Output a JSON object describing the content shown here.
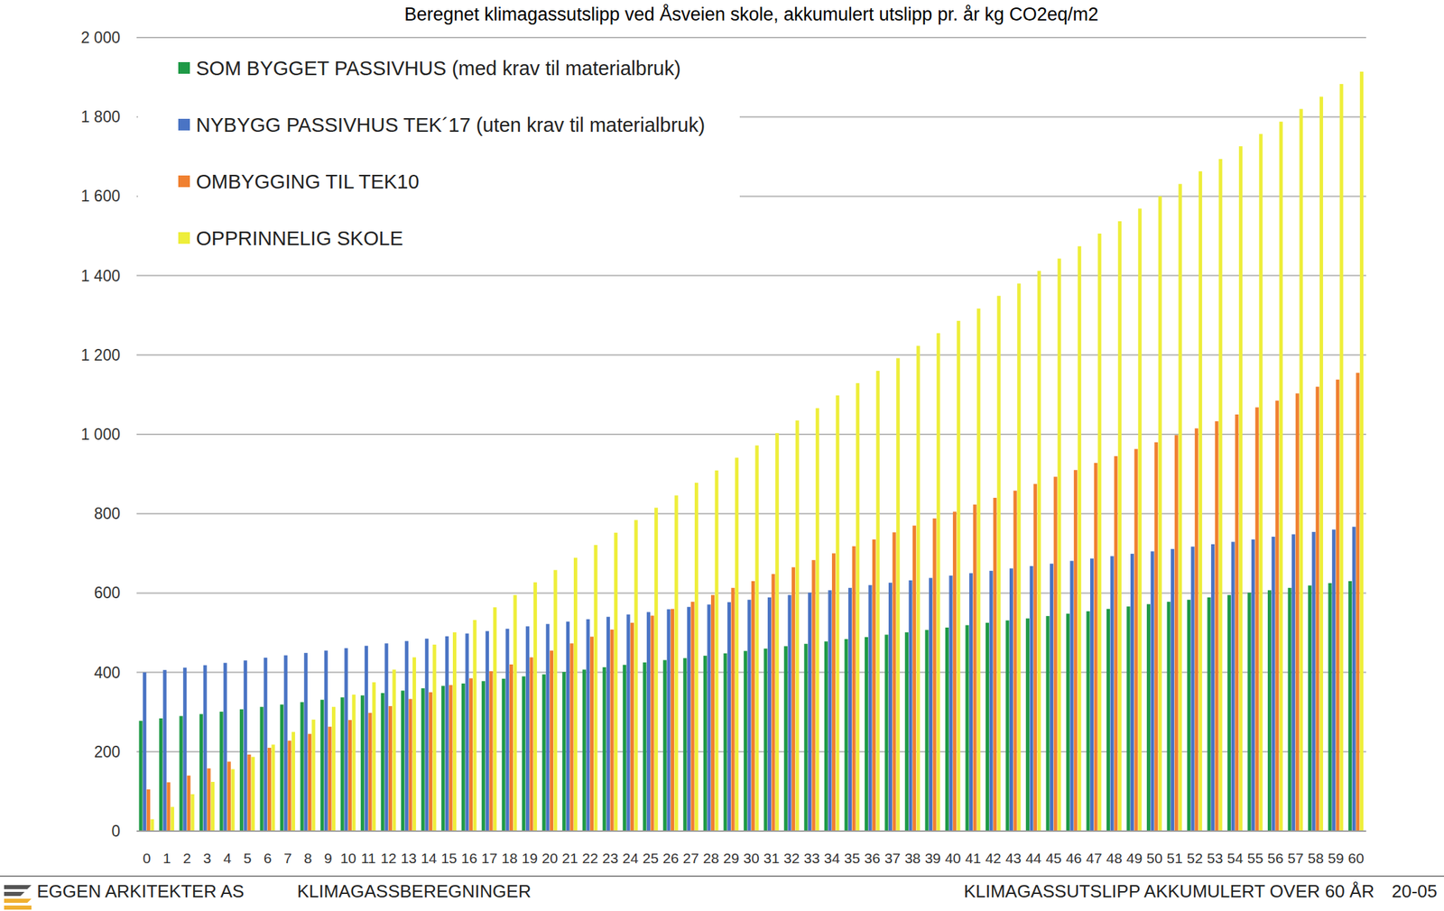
{
  "chart_data": {
    "type": "bar",
    "title": "Beregnet klimagassutslipp ved Åsveien skole, akkumulert utslipp pr. år kg CO2eq/m2",
    "categories": [
      "0",
      "1",
      "2",
      "3",
      "4",
      "5",
      "6",
      "7",
      "8",
      "9",
      "10",
      "11",
      "12",
      "13",
      "14",
      "15",
      "16",
      "17",
      "18",
      "19",
      "20",
      "21",
      "22",
      "23",
      "24",
      "25",
      "26",
      "27",
      "28",
      "29",
      "30",
      "31",
      "32",
      "33",
      "34",
      "35",
      "36",
      "37",
      "38",
      "39",
      "40",
      "41",
      "42",
      "43",
      "44",
      "45",
      "46",
      "47",
      "48",
      "49",
      "50",
      "51",
      "52",
      "53",
      "54",
      "55",
      "56",
      "57",
      "58",
      "59",
      "60"
    ],
    "series": [
      {
        "name": "SOM BYGGET PASSIVHUS (med krav til materialbruk)",
        "color": "#1f9a47",
        "values": [
          278,
          284,
          290,
          295,
          301,
          307,
          313,
          319,
          325,
          331,
          337,
          342,
          348,
          354,
          360,
          366,
          372,
          378,
          384,
          390,
          395,
          401,
          407,
          413,
          419,
          425,
          431,
          436,
          442,
          448,
          454,
          460,
          466,
          472,
          478,
          484,
          489,
          495,
          501,
          507,
          513,
          519,
          525,
          531,
          536,
          542,
          548,
          554,
          560,
          566,
          572,
          578,
          583,
          589,
          595,
          601,
          607,
          613,
          619,
          625,
          630
        ]
      },
      {
        "name": "NYBYGG PASSIVHUS TEK´17 (uten krav til materialbruk)",
        "color": "#4a74c4",
        "values": [
          400,
          406,
          412,
          418,
          424,
          430,
          437,
          443,
          449,
          455,
          461,
          467,
          473,
          479,
          485,
          491,
          498,
          504,
          510,
          516,
          522,
          528,
          534,
          540,
          546,
          552,
          559,
          565,
          571,
          577,
          583,
          589,
          595,
          601,
          607,
          613,
          620,
          626,
          632,
          638,
          644,
          650,
          656,
          662,
          668,
          674,
          681,
          687,
          693,
          699,
          705,
          711,
          717,
          723,
          729,
          735,
          742,
          748,
          754,
          760,
          767
        ]
      },
      {
        "name": "OMBYGGING TIL TEK10",
        "color": "#f08030",
        "values": [
          105,
          123,
          140,
          158,
          175,
          193,
          210,
          228,
          245,
          263,
          280,
          298,
          315,
          333,
          350,
          368,
          385,
          403,
          420,
          438,
          455,
          473,
          490,
          508,
          525,
          543,
          560,
          578,
          595,
          613,
          630,
          648,
          665,
          683,
          700,
          718,
          735,
          753,
          770,
          788,
          805,
          823,
          840,
          858,
          875,
          893,
          910,
          928,
          945,
          963,
          980,
          998,
          1015,
          1033,
          1050,
          1068,
          1085,
          1103,
          1120,
          1138,
          1155
        ]
      },
      {
        "name": "OPPRINNELIG SKOLE",
        "color": "#eeee3a",
        "values": [
          30,
          61,
          93,
          124,
          156,
          187,
          218,
          250,
          281,
          313,
          344,
          375,
          407,
          438,
          470,
          501,
          532,
          564,
          595,
          627,
          658,
          689,
          721,
          752,
          784,
          815,
          846,
          878,
          909,
          941,
          972,
          1003,
          1035,
          1066,
          1098,
          1129,
          1160,
          1192,
          1223,
          1255,
          1286,
          1317,
          1349,
          1380,
          1412,
          1443,
          1474,
          1506,
          1537,
          1569,
          1600,
          1631,
          1663,
          1694,
          1726,
          1757,
          1788,
          1820,
          1851,
          1883,
          1914
        ]
      }
    ],
    "ylim": [
      0,
      2000
    ],
    "yticks": [
      0,
      200,
      400,
      600,
      800,
      {
        "value": 1000,
        "label": "1 000"
      },
      {
        "value": 1200,
        "label": "1 200"
      },
      {
        "value": 1400,
        "label": "1 400"
      },
      {
        "value": 1600,
        "label": "1 600"
      },
      {
        "value": 1800,
        "label": "1 800"
      },
      {
        "value": 2000,
        "label": "2 000"
      }
    ],
    "grid": true,
    "legend": "top-left"
  },
  "footer": {
    "company": "EGGEN ARKITEKTER AS",
    "section": "KLIMAGASSBEREGNINGER",
    "subject": "KLIMAGASSUTSLIPP AKKUMULERT OVER 60 ÅR",
    "page": "20-05"
  }
}
